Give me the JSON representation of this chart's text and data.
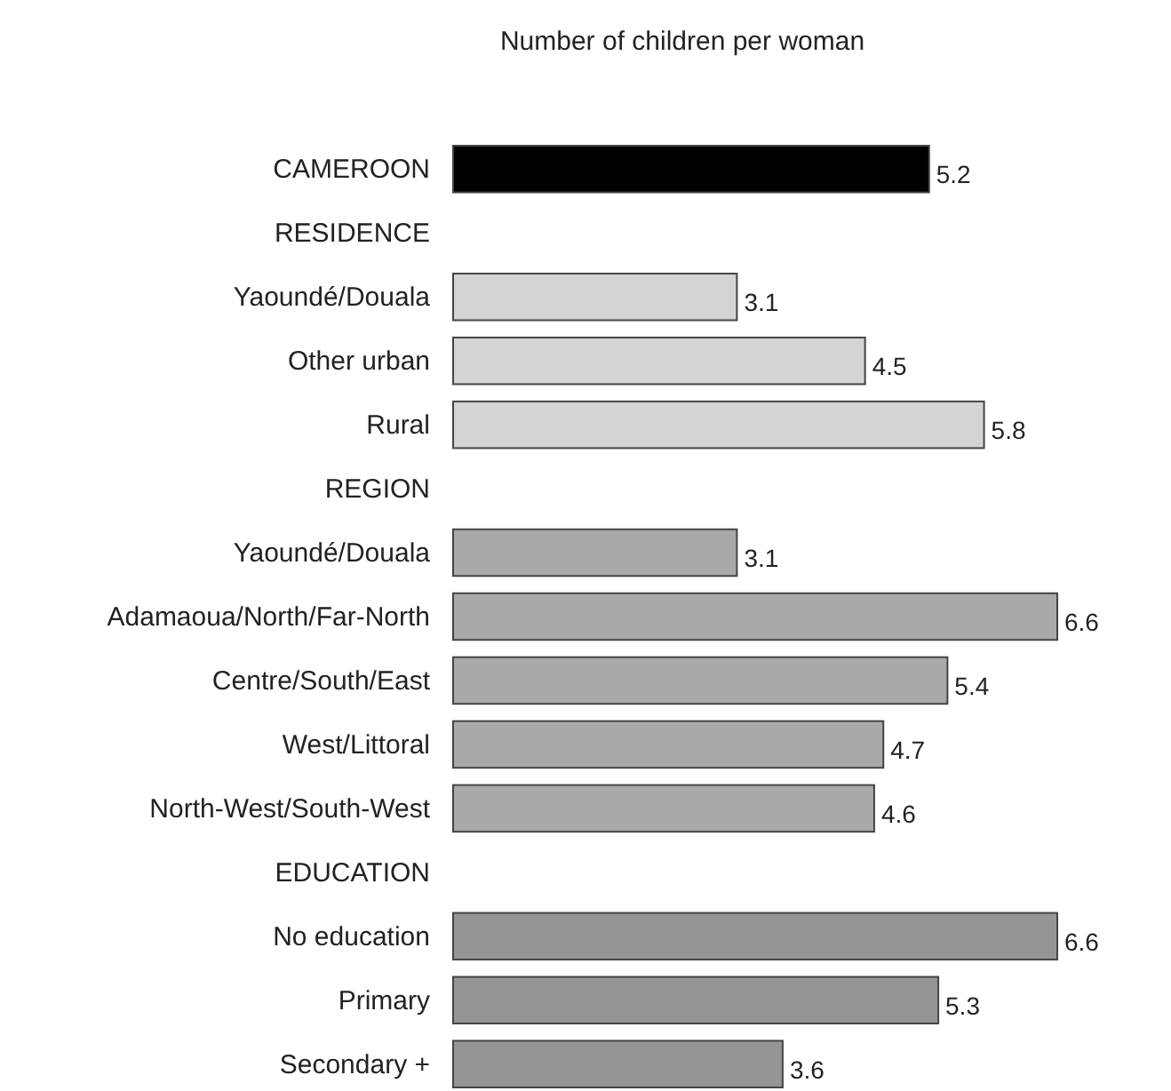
{
  "chart_data": {
    "type": "bar",
    "orientation": "horizontal",
    "title": "Number of children per woman",
    "categories": [
      "CAMEROON",
      "RESIDENCE",
      "Yaoundé/Douala",
      "Other urban",
      "Rural",
      "REGION",
      "Yaoundé/Douala",
      "Adamaoua/North/Far-North",
      "Centre/South/East",
      "West/Littoral",
      "North-West/South-West",
      "EDUCATION",
      "No education",
      "Primary",
      "Secondary +"
    ],
    "values": [
      5.2,
      null,
      3.1,
      4.5,
      5.8,
      null,
      3.1,
      6.6,
      5.4,
      4.7,
      4.6,
      null,
      6.6,
      5.3,
      3.6
    ],
    "colors": [
      "#000000",
      null,
      "#d4d4d4",
      "#d4d4d4",
      "#d4d4d4",
      null,
      "#a9a9a9",
      "#a9a9a9",
      "#a9a9a9",
      "#a9a9a9",
      "#a9a9a9",
      null,
      "#959595",
      "#959595",
      "#959595"
    ],
    "data_labels": true
  }
}
